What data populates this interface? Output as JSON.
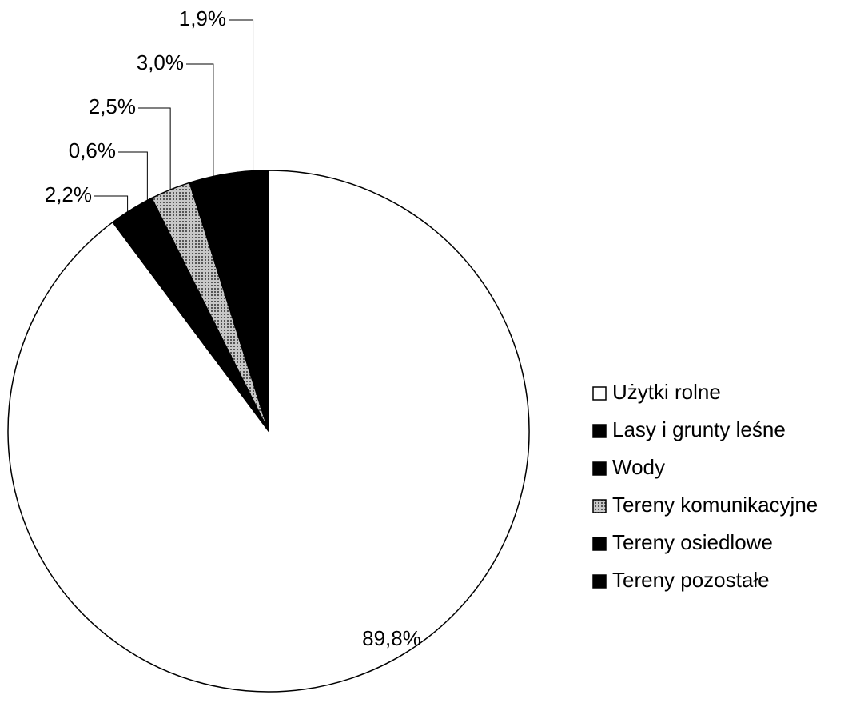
{
  "chart_data": {
    "type": "pie",
    "categories": [
      "Użytki rolne",
      "Lasy i grunty leśne",
      "Wody",
      "Tereny komunikacyjne",
      "Tereny osiedlowe",
      "Tereny pozostałe"
    ],
    "values": [
      89.8,
      2.2,
      0.6,
      2.5,
      3.0,
      1.9
    ],
    "value_labels": [
      "89,8%",
      "2,2%",
      "0,6%",
      "2,5%",
      "3,0%",
      "1,9%"
    ],
    "colors": [
      "#ffffff",
      "#000000",
      "#000000",
      "#a0a0a0",
      "#000000",
      "#000000"
    ],
    "legend": "right"
  }
}
